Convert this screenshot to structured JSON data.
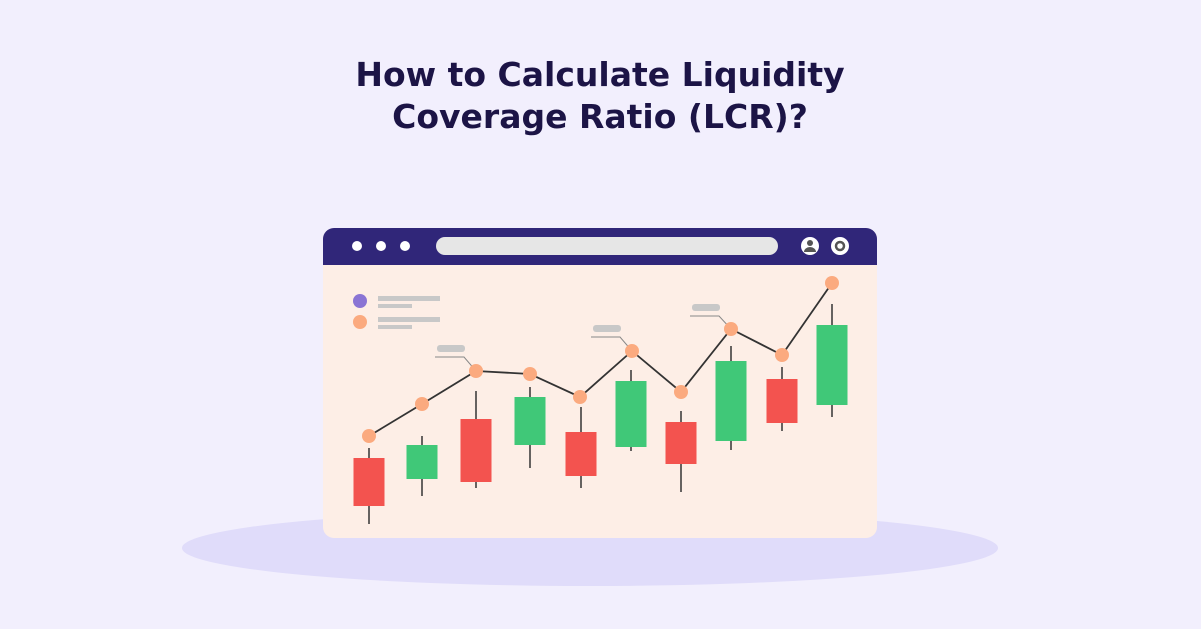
{
  "header": {
    "title_lines": [
      "How to Calculate Liquidity",
      "Coverage Ratio (LCR)?"
    ]
  }
}
